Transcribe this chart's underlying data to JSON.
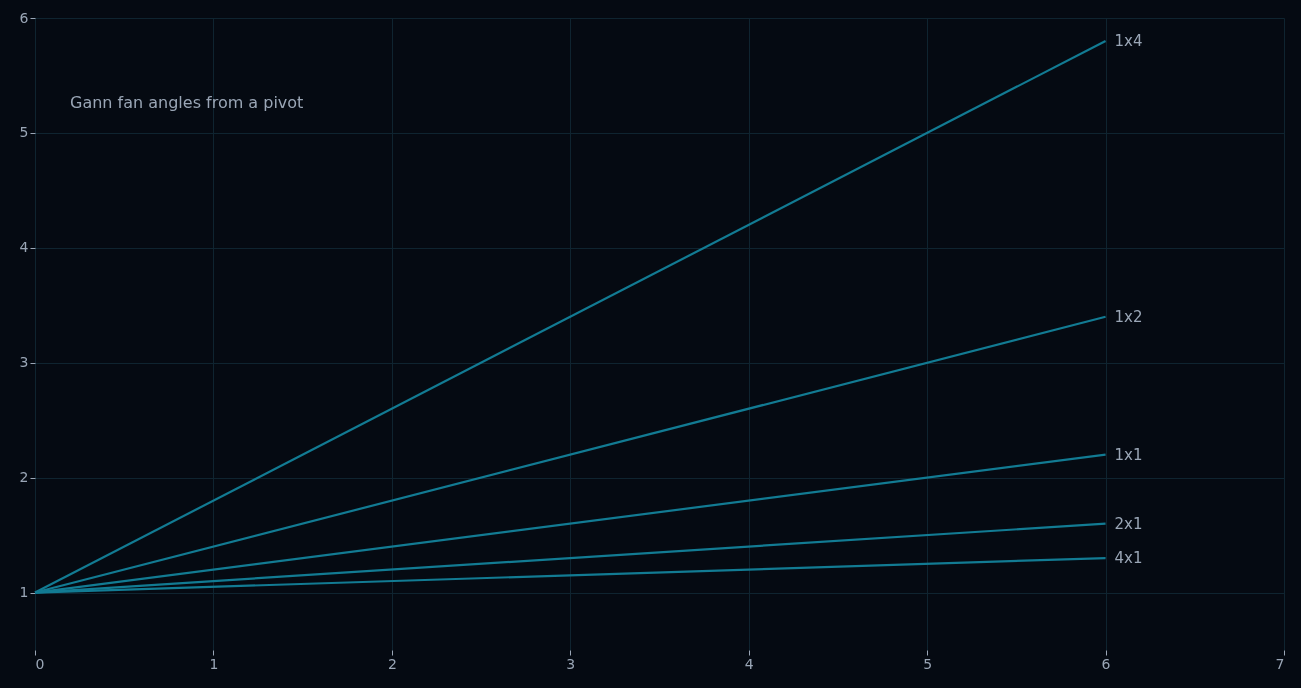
{
  "chart_data": {
    "type": "line",
    "annotations": [
      "Gann fan angles from a pivot"
    ],
    "x": [
      0,
      6
    ],
    "xlim": [
      0,
      7
    ],
    "xticks": [
      0,
      1,
      2,
      3,
      4,
      5,
      6,
      7
    ],
    "ylim": [
      0.5,
      6
    ],
    "yticks": [
      1,
      2,
      3,
      4,
      5,
      6
    ],
    "grid": true,
    "marker": "none",
    "line_style": "solid",
    "series": [
      {
        "name": "1x4",
        "color": "#127b93",
        "values": [
          1,
          5.8
        ]
      },
      {
        "name": "1x2",
        "color": "#127b93",
        "values": [
          1,
          3.4
        ]
      },
      {
        "name": "1x1",
        "color": "#127b93",
        "values": [
          1,
          2.2
        ]
      },
      {
        "name": "2x1",
        "color": "#127b93",
        "values": [
          1,
          1.6
        ]
      },
      {
        "name": "4x1",
        "color": "#127b93",
        "values": [
          1,
          1.3
        ]
      }
    ]
  }
}
